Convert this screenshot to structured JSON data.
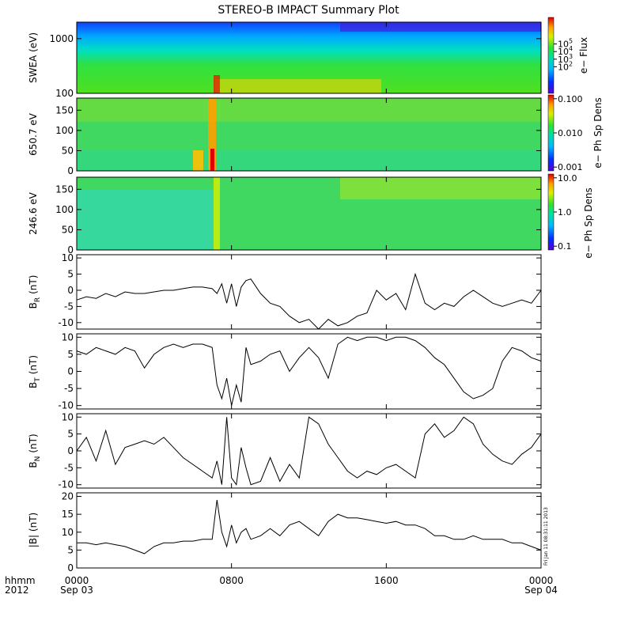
{
  "title": "STEREO-B IMPACT Summary Plot",
  "footer": {
    "label_top": "hhmm",
    "label_bottom": "2012",
    "ticks": [
      {
        "time": "0000",
        "date": "Sep 03",
        "hour": 0
      },
      {
        "time": "0800",
        "date": "",
        "hour": 8
      },
      {
        "time": "1600",
        "date": "",
        "hour": 16
      },
      {
        "time": "0000",
        "date": "Sep 04",
        "hour": 24
      }
    ]
  },
  "stamp": "Fri Jan 11 08:31:11 2013",
  "colors": {
    "line": "#000000",
    "frame": "#000000"
  },
  "chart_data": [
    {
      "type": "heatmap",
      "ylabel": "SWEA (eV)",
      "yscale": "log",
      "ylim": [
        100,
        2000
      ],
      "yticks": [
        {
          "label": "100",
          "value": 100
        },
        {
          "label": "1000",
          "value": 1000
        }
      ],
      "colorbar": {
        "label": "e− Flux",
        "scale": "log",
        "ticks": [
          {
            "label": "10^2",
            "value": 100
          },
          {
            "label": "10^3",
            "value": 1000
          },
          {
            "label": "10^4",
            "value": 10000
          },
          {
            "label": "10^5",
            "value": 100000
          }
        ]
      }
    },
    {
      "type": "heatmap",
      "ylabel": "650.7 eV",
      "ylim": [
        0,
        180
      ],
      "yticks": [
        {
          "label": "0",
          "value": 0
        },
        {
          "label": "50",
          "value": 50
        },
        {
          "label": "100",
          "value": 100
        },
        {
          "label": "150",
          "value": 150
        }
      ],
      "colorbar": {
        "label": "e− Ph Sp Dens",
        "scale": "log",
        "ticks": [
          {
            "label": "0.001",
            "value": 0.001
          },
          {
            "label": "0.010",
            "value": 0.01
          },
          {
            "label": "0.100",
            "value": 0.1
          }
        ]
      }
    },
    {
      "type": "heatmap",
      "ylabel": "246.6 eV",
      "ylim": [
        0,
        180
      ],
      "yticks": [
        {
          "label": "0",
          "value": 0
        },
        {
          "label": "50",
          "value": 50
        },
        {
          "label": "100",
          "value": 100
        },
        {
          "label": "150",
          "value": 150
        }
      ],
      "colorbar": {
        "label": "e− Ph Sp Dens",
        "scale": "log",
        "ticks": [
          {
            "label": "0.1",
            "value": 0.1
          },
          {
            "label": "1.0",
            "value": 1
          },
          {
            "label": "10.0",
            "value": 10
          }
        ]
      }
    },
    {
      "type": "line",
      "ylabel": "B",
      "ylabel_sub": "R",
      "ylabel_unit": "(nT)",
      "ylim": [
        -12,
        11
      ],
      "yticks": [
        {
          "label": "-10",
          "value": -10
        },
        {
          "label": "-5",
          "value": -5
        },
        {
          "label": "0",
          "value": 0
        },
        {
          "label": "5",
          "value": 5
        },
        {
          "label": "10",
          "value": 10
        }
      ],
      "x": [
        0,
        0.5,
        1,
        1.5,
        2,
        2.5,
        3,
        3.5,
        4,
        4.5,
        5,
        5.5,
        6,
        6.5,
        7,
        7.25,
        7.5,
        7.75,
        8,
        8.25,
        8.5,
        8.75,
        9,
        9.5,
        10,
        10.5,
        11,
        11.5,
        12,
        12.5,
        13,
        13.5,
        14,
        14.5,
        15,
        15.5,
        16,
        16.5,
        17,
        17.5,
        18,
        18.5,
        19,
        19.5,
        20,
        20.5,
        21,
        21.5,
        22,
        22.5,
        23,
        23.5,
        24
      ],
      "y": [
        -3,
        -2,
        -2.5,
        -1,
        -2,
        -0.5,
        -1,
        -1,
        -0.5,
        0,
        0,
        0.5,
        1,
        1,
        0.5,
        -1,
        2,
        -4,
        2,
        -5,
        1,
        3,
        3.5,
        -1,
        -4,
        -5,
        -8,
        -10,
        -9,
        -12,
        -9,
        -11,
        -10,
        -8,
        -7,
        0,
        -3,
        -1,
        -6,
        5,
        -4,
        -6,
        -4,
        -5,
        -2,
        0,
        -2,
        -4,
        -5,
        -4,
        -3,
        -4,
        0
      ]
    },
    {
      "type": "line",
      "ylabel": "B",
      "ylabel_sub": "T",
      "ylabel_unit": "(nT)",
      "ylim": [
        -11,
        11
      ],
      "yticks": [
        {
          "label": "-10",
          "value": -10
        },
        {
          "label": "-5",
          "value": -5
        },
        {
          "label": "0",
          "value": 0
        },
        {
          "label": "5",
          "value": 5
        },
        {
          "label": "10",
          "value": 10
        }
      ],
      "x": [
        0,
        0.5,
        1,
        1.5,
        2,
        2.5,
        3,
        3.5,
        4,
        4.5,
        5,
        5.5,
        6,
        6.5,
        7,
        7.25,
        7.5,
        7.75,
        8,
        8.25,
        8.5,
        8.75,
        9,
        9.5,
        10,
        10.5,
        11,
        11.5,
        12,
        12.5,
        13,
        13.5,
        14,
        14.5,
        15,
        15.5,
        16,
        16.5,
        17,
        17.5,
        18,
        18.5,
        19,
        19.5,
        20,
        20.5,
        21,
        21.5,
        22,
        22.5,
        23,
        23.5,
        24
      ],
      "y": [
        6,
        5,
        7,
        6,
        5,
        7,
        6,
        1,
        5,
        7,
        8,
        7,
        8,
        8,
        7,
        -4,
        -8,
        -2,
        -10,
        -4,
        -9,
        7,
        2,
        3,
        5,
        6,
        0,
        4,
        7,
        4,
        -2,
        8,
        10,
        9,
        10,
        10,
        9,
        10,
        10,
        9,
        7,
        4,
        2,
        -2,
        -6,
        -8,
        -7,
        -5,
        3,
        7,
        6,
        4,
        3
      ]
    },
    {
      "type": "line",
      "ylabel": "B",
      "ylabel_sub": "N",
      "ylabel_unit": "(nT)",
      "ylim": [
        -11,
        11
      ],
      "yticks": [
        {
          "label": "-10",
          "value": -10
        },
        {
          "label": "-5",
          "value": -5
        },
        {
          "label": "0",
          "value": 0
        },
        {
          "label": "5",
          "value": 5
        },
        {
          "label": "10",
          "value": 10
        }
      ],
      "x": [
        0,
        0.5,
        1,
        1.5,
        2,
        2.5,
        3,
        3.5,
        4,
        4.5,
        5,
        5.5,
        6,
        6.5,
        7,
        7.25,
        7.5,
        7.75,
        8,
        8.25,
        8.5,
        8.75,
        9,
        9.5,
        10,
        10.5,
        11,
        11.5,
        12,
        12.5,
        13,
        13.5,
        14,
        14.5,
        15,
        15.5,
        16,
        16.5,
        17,
        17.5,
        18,
        18.5,
        19,
        19.5,
        20,
        20.5,
        21,
        21.5,
        22,
        22.5,
        23,
        23.5,
        24
      ],
      "y": [
        0,
        4,
        -3,
        6,
        -4,
        1,
        2,
        3,
        2,
        4,
        1,
        -2,
        -4,
        -6,
        -8,
        -3,
        -10,
        10,
        -8,
        -10,
        1,
        -5,
        -10,
        -9,
        -2,
        -9,
        -4,
        -8,
        10,
        8,
        2,
        -2,
        -6,
        -8,
        -6,
        -7,
        -5,
        -4,
        -6,
        -8,
        5,
        8,
        4,
        6,
        10,
        8,
        2,
        -1,
        -3,
        -4,
        -1,
        1,
        5
      ]
    },
    {
      "type": "line",
      "ylabel": "|B| (nT)",
      "ylim": [
        0,
        21
      ],
      "yticks": [
        {
          "label": "0",
          "value": 0
        },
        {
          "label": "5",
          "value": 5
        },
        {
          "label": "10",
          "value": 10
        },
        {
          "label": "15",
          "value": 15
        },
        {
          "label": "20",
          "value": 20
        }
      ],
      "x": [
        0,
        0.5,
        1,
        1.5,
        2,
        2.5,
        3,
        3.5,
        4,
        4.5,
        5,
        5.5,
        6,
        6.5,
        7,
        7.25,
        7.5,
        7.75,
        8,
        8.25,
        8.5,
        8.75,
        9,
        9.5,
        10,
        10.5,
        11,
        11.5,
        12,
        12.5,
        13,
        13.5,
        14,
        14.5,
        15,
        15.5,
        16,
        16.5,
        17,
        17.5,
        18,
        18.5,
        19,
        19.5,
        20,
        20.5,
        21,
        21.5,
        22,
        22.5,
        23,
        23.5,
        24
      ],
      "y": [
        7,
        7,
        6.5,
        7,
        6.5,
        6,
        5,
        4,
        6,
        7,
        7,
        7.5,
        7.5,
        8,
        8,
        19,
        10,
        6,
        12,
        7,
        10,
        11,
        8,
        9,
        11,
        9,
        12,
        13,
        11,
        9,
        13,
        15,
        14,
        14,
        13.5,
        13,
        12.5,
        13,
        12,
        12,
        11,
        9,
        9,
        8,
        8,
        9,
        8,
        8,
        8,
        7,
        7,
        6,
        5
      ]
    }
  ]
}
